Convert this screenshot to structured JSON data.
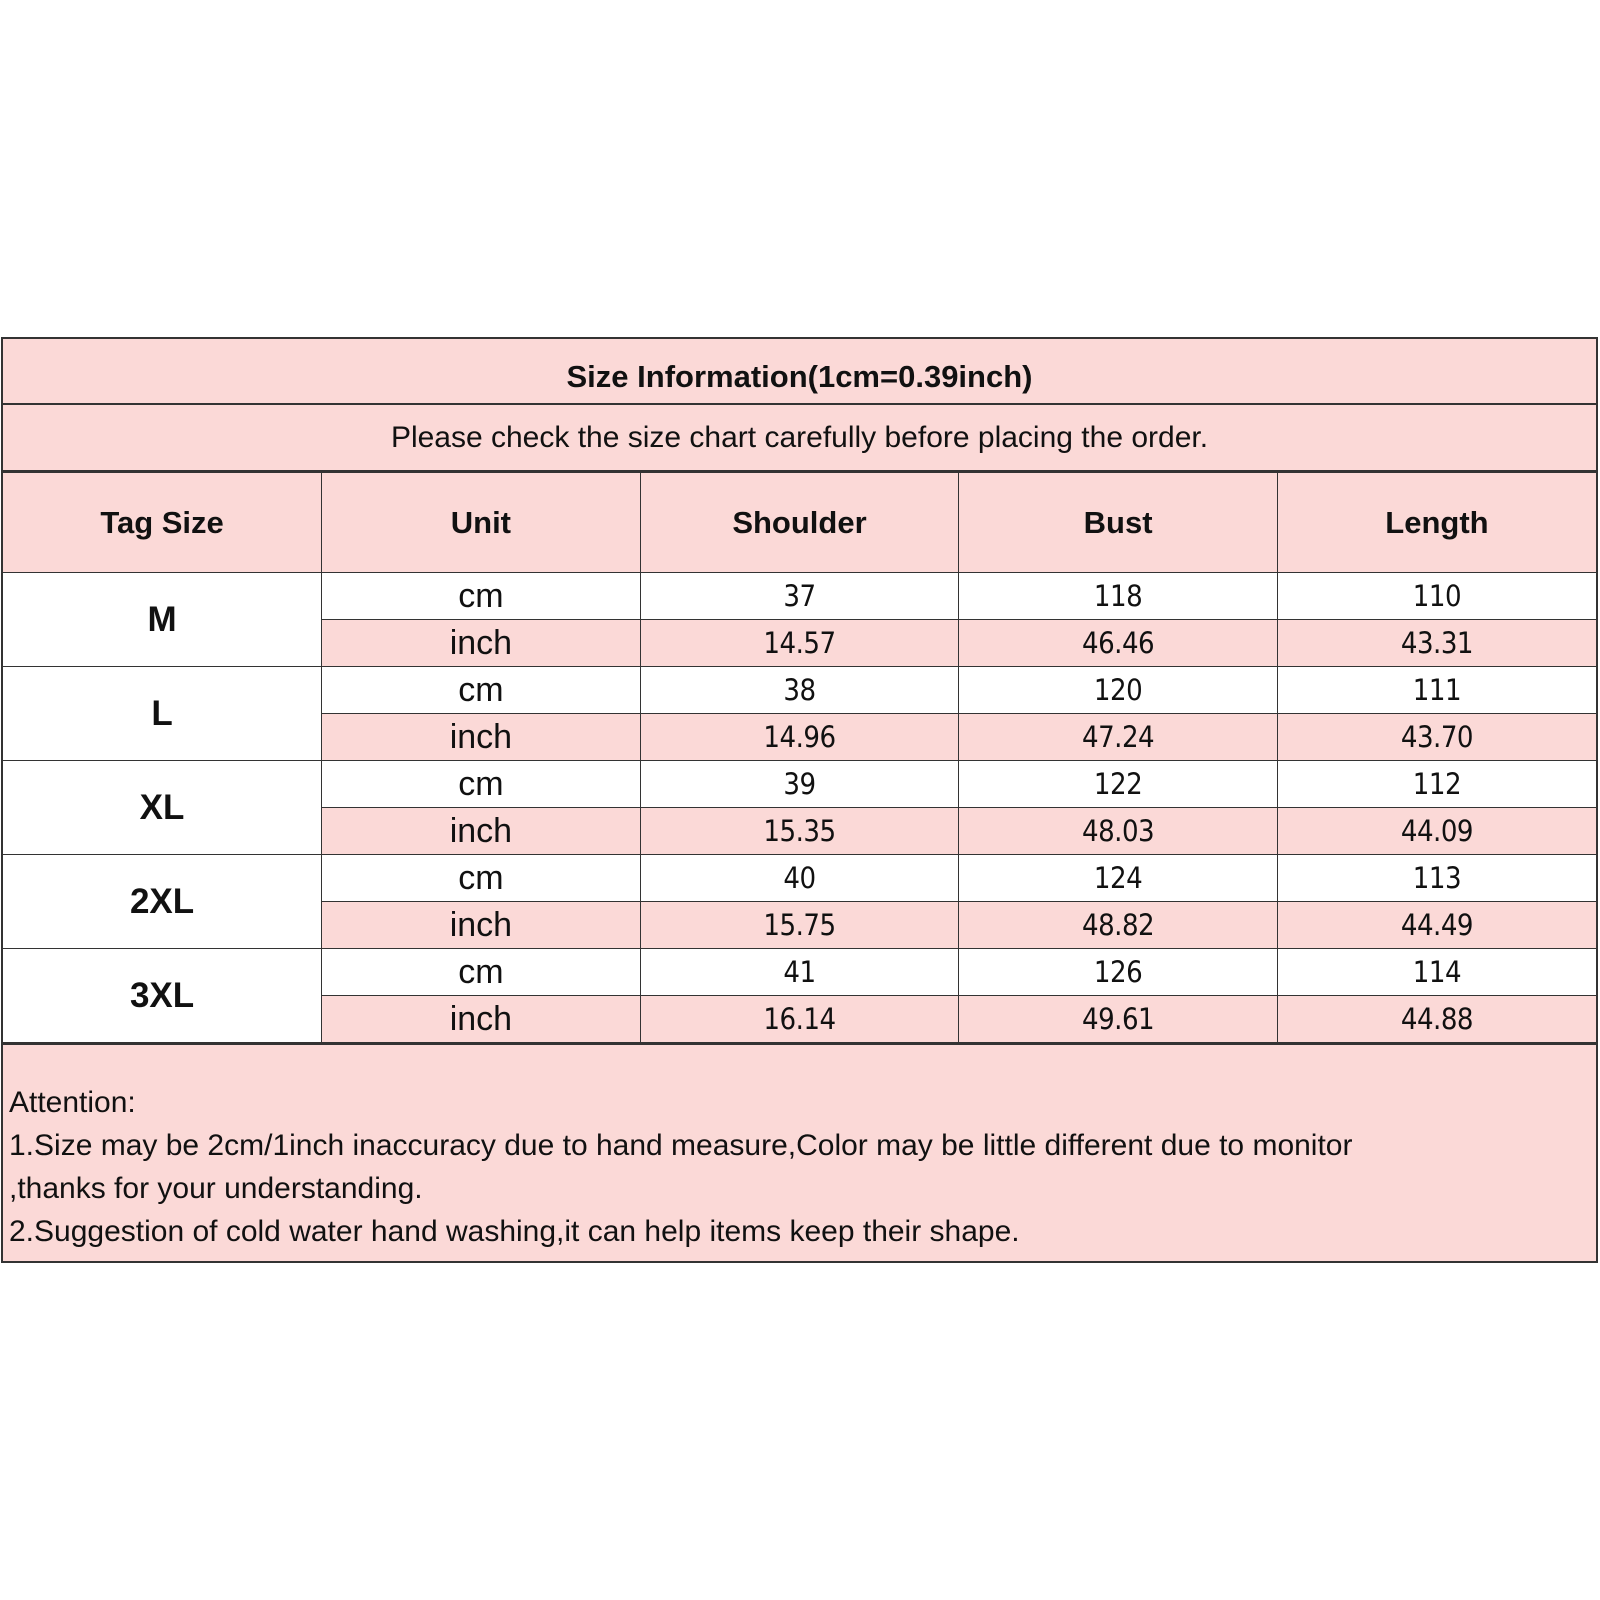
{
  "title": "Size Information(1cm=0.39inch)",
  "subtitle": "Please check the size chart carefully before placing the order.",
  "colors": {
    "header_bg": "#fbd9d7",
    "row_bg": "#ffffff",
    "border": "#333333"
  },
  "columns": [
    "Tag Size",
    "Unit",
    "Shoulder",
    "Bust",
    "Length"
  ],
  "sizes": [
    {
      "tag": "M",
      "rows": [
        [
          "cm",
          "37",
          "118",
          "110"
        ],
        [
          "inch",
          "14.57",
          "46.46",
          "43.31"
        ]
      ]
    },
    {
      "tag": "L",
      "rows": [
        [
          "cm",
          "38",
          "120",
          "111"
        ],
        [
          "inch",
          "14.96",
          "47.24",
          "43.70"
        ]
      ]
    },
    {
      "tag": "XL",
      "rows": [
        [
          "cm",
          "39",
          "122",
          "112"
        ],
        [
          "inch",
          "15.35",
          "48.03",
          "44.09"
        ]
      ]
    },
    {
      "tag": "2XL",
      "rows": [
        [
          "cm",
          "40",
          "124",
          "113"
        ],
        [
          "inch",
          "15.75",
          "48.82",
          "44.49"
        ]
      ]
    },
    {
      "tag": "3XL",
      "rows": [
        [
          "cm",
          "41",
          "126",
          "114"
        ],
        [
          "inch",
          "16.14",
          "49.61",
          "44.88"
        ]
      ]
    }
  ],
  "notes": [
    "Attention:",
    "1.Size may be 2cm/1inch inaccuracy due to hand measure,Color may be little different due to monitor",
    ",thanks for your understanding.",
    "2.Suggestion of cold water hand washing,it can help items keep their shape."
  ]
}
